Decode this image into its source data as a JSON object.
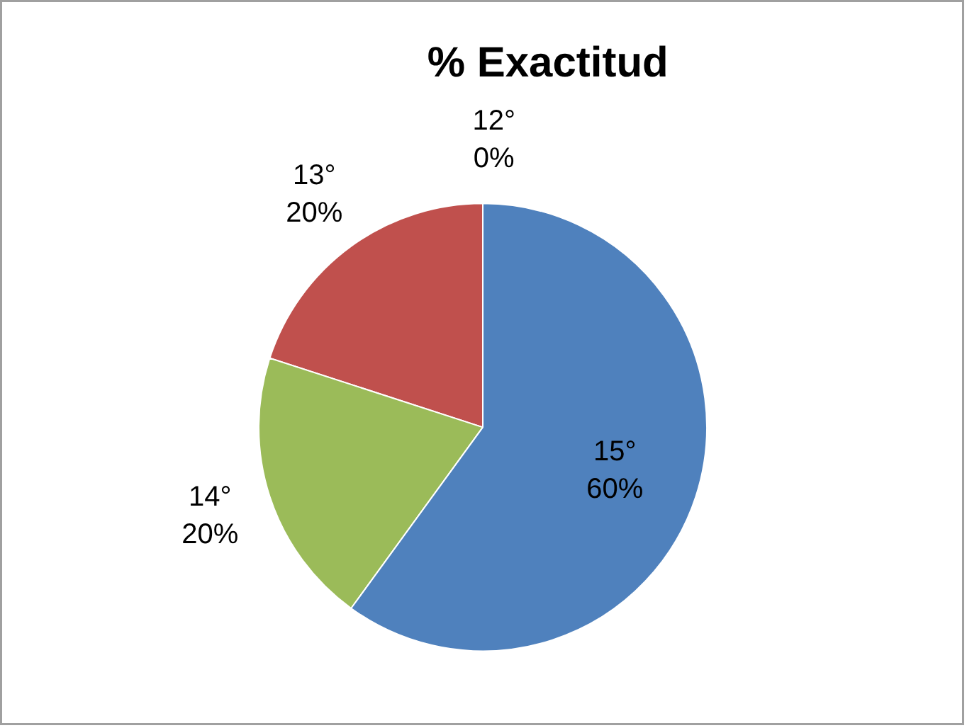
{
  "chart_data": {
    "type": "pie",
    "title": "%  Exactitud",
    "categories": [
      "12°",
      "13°",
      "14°",
      "15°"
    ],
    "values": [
      0,
      20,
      20,
      60
    ],
    "colors": [
      "#4f81bd",
      "#c0504d",
      "#9bbb59",
      "#4f81bd"
    ],
    "value_labels": [
      "0%",
      "20%",
      "20%",
      "60%"
    ]
  }
}
